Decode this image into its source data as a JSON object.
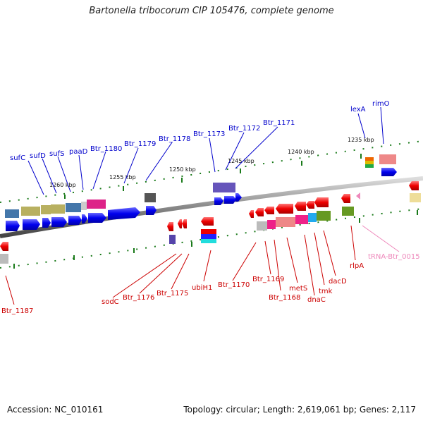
{
  "title": "Bartonella tribocorum CIP 105476, complete genome",
  "footer": {
    "accession": "Accession: NC_010161",
    "summary": "Topology: circular; Length: 2,619,061 bp; Genes: 2,117"
  },
  "scale_labels": [
    "1260 kbp",
    "1255 kbp",
    "1250 kbp",
    "1245 kbp",
    "1240 kbp",
    "1235 kbp"
  ],
  "forward_gene_labels": [
    "sufC",
    "sufD",
    "sufS",
    "paaD",
    "Btr_1180",
    "Btr_1179",
    "Btr_1178",
    "Btr_1173",
    "Btr_1172",
    "Btr_1171",
    "lexA",
    "rimO"
  ],
  "reverse_gene_labels": [
    "Btr_1187",
    "sodC",
    "Btr_1176",
    "Btr_1175",
    "ubiH1",
    "Btr_1170",
    "Btr_1169",
    "Btr_1168",
    "metS",
    "dnaC",
    "tmk",
    "dacD",
    "rlpA",
    "tRNA-Btr_0015"
  ],
  "colors": {
    "forward_arrow": "#0000ee",
    "reverse_arrow": "#ee0000",
    "backbone": "#888888",
    "tick": "#1a7a1a",
    "trna": "#ee88bb"
  }
}
